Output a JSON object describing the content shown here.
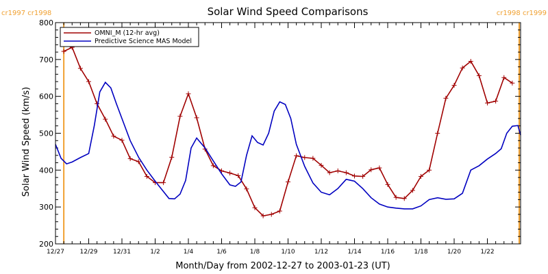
{
  "chart_data": {
    "type": "line",
    "title": "Solar Wind Speed Comparisons",
    "xlabel": "Month/Day from 2002-12-27 to 2003-01-23 (UT)",
    "ylabel": "Solar Wind Speed (km/s)",
    "ylim": [
      200,
      800
    ],
    "yticks": [
      200,
      300,
      400,
      500,
      600,
      700,
      800
    ],
    "xlim": [
      "2002-12-27",
      "2003-01-24"
    ],
    "xtick_labels": [
      "12/27",
      "12/29",
      "12/31",
      "1/2",
      "1/4",
      "1/6",
      "1/8",
      "1/10",
      "1/12",
      "1/14",
      "1/16",
      "1/18",
      "1/20",
      "1/22"
    ],
    "xtick_dates": [
      "2002-12-27",
      "2002-12-29",
      "2002-12-31",
      "2003-01-02",
      "2003-01-04",
      "2003-01-06",
      "2003-01-08",
      "2003-01-10",
      "2003-01-12",
      "2003-01-14",
      "2003-01-16",
      "2003-01-18",
      "2003-01-20",
      "2003-01-22"
    ],
    "grid": false,
    "legend_position": "top-left",
    "carrington_markers": [
      {
        "label": "cr1997 cr1998",
        "date": "2002-12-27T12:00",
        "color": "#f0a030"
      },
      {
        "label": "cr1998 cr1999",
        "date": "2003-01-23T22:00",
        "color": "#f0a030"
      }
    ],
    "series": [
      {
        "name": "OMNI_M (12-hr avg)",
        "color": "#a00000",
        "marker": "plus",
        "points": [
          [
            "2002-12-27T12:00",
            722
          ],
          [
            "2002-12-28T00:00",
            733
          ],
          [
            "2002-12-28T12:00",
            676
          ],
          [
            "2002-12-29T00:00",
            640
          ],
          [
            "2002-12-29T12:00",
            580
          ],
          [
            "2002-12-30T00:00",
            538
          ],
          [
            "2002-12-30T12:00",
            492
          ],
          [
            "2002-12-31T00:00",
            481
          ],
          [
            "2002-12-31T12:00",
            431
          ],
          [
            "2003-01-01T00:00",
            423
          ],
          [
            "2003-01-01T12:00",
            383
          ],
          [
            "2003-01-02T00:00",
            366
          ],
          [
            "2003-01-02T12:00",
            366
          ],
          [
            "2003-01-03T00:00",
            435
          ],
          [
            "2003-01-03T12:00",
            546
          ],
          [
            "2003-01-04T00:00",
            607
          ],
          [
            "2003-01-04T12:00",
            542
          ],
          [
            "2003-01-05T00:00",
            457
          ],
          [
            "2003-01-05T12:00",
            412
          ],
          [
            "2003-01-06T00:00",
            398
          ],
          [
            "2003-01-06T12:00",
            392
          ],
          [
            "2003-01-07T00:00",
            385
          ],
          [
            "2003-01-07T12:00",
            349
          ],
          [
            "2003-01-08T00:00",
            298
          ],
          [
            "2003-01-08T12:00",
            276
          ],
          [
            "2003-01-09T00:00",
            280
          ],
          [
            "2003-01-09T12:00",
            289
          ],
          [
            "2003-01-10T00:00",
            368
          ],
          [
            "2003-01-10T12:00",
            439
          ],
          [
            "2003-01-11T00:00",
            434
          ],
          [
            "2003-01-11T12:00",
            432
          ],
          [
            "2003-01-12T00:00",
            413
          ],
          [
            "2003-01-12T12:00",
            393
          ],
          [
            "2003-01-13T00:00",
            398
          ],
          [
            "2003-01-13T12:00",
            393
          ],
          [
            "2003-01-14T00:00",
            384
          ],
          [
            "2003-01-14T12:00",
            383
          ],
          [
            "2003-01-15T00:00",
            401
          ],
          [
            "2003-01-15T12:00",
            406
          ],
          [
            "2003-01-16T00:00",
            361
          ],
          [
            "2003-01-16T12:00",
            326
          ],
          [
            "2003-01-17T00:00",
            323
          ],
          [
            "2003-01-17T12:00",
            345
          ],
          [
            "2003-01-18T00:00",
            383
          ],
          [
            "2003-01-18T12:00",
            400
          ],
          [
            "2003-01-19T00:00",
            500
          ],
          [
            "2003-01-19T12:00",
            595
          ],
          [
            "2003-01-20T00:00",
            630
          ],
          [
            "2003-01-20T12:00",
            677
          ],
          [
            "2003-01-21T00:00",
            695
          ],
          [
            "2003-01-21T12:00",
            656
          ],
          [
            "2003-01-22T00:00",
            582
          ],
          [
            "2003-01-22T12:00",
            587
          ],
          [
            "2003-01-23T00:00",
            651
          ],
          [
            "2003-01-23T12:00",
            636
          ]
        ]
      },
      {
        "name": "Predictive Science MAS Model",
        "color": "#0000c0",
        "points": [
          [
            "2002-12-27T00:00",
            470
          ],
          [
            "2002-12-27T08:00",
            432
          ],
          [
            "2002-12-27T16:00",
            417
          ],
          [
            "2002-12-28T00:00",
            422
          ],
          [
            "2002-12-28T12:00",
            434
          ],
          [
            "2002-12-29T00:00",
            445
          ],
          [
            "2002-12-29T08:00",
            520
          ],
          [
            "2002-12-29T16:00",
            612
          ],
          [
            "2002-12-30T00:00",
            638
          ],
          [
            "2002-12-30T08:00",
            623
          ],
          [
            "2002-12-30T16:00",
            580
          ],
          [
            "2002-12-31T00:00",
            540
          ],
          [
            "2002-12-31T12:00",
            480
          ],
          [
            "2003-01-01T00:00",
            435
          ],
          [
            "2003-01-01T12:00",
            400
          ],
          [
            "2003-01-02T00:00",
            370
          ],
          [
            "2003-01-02T12:00",
            342
          ],
          [
            "2003-01-02T20:00",
            323
          ],
          [
            "2003-01-03T04:00",
            322
          ],
          [
            "2003-01-03T12:00",
            335
          ],
          [
            "2003-01-03T20:00",
            372
          ],
          [
            "2003-01-04T04:00",
            460
          ],
          [
            "2003-01-04T12:00",
            487
          ],
          [
            "2003-01-05T00:00",
            460
          ],
          [
            "2003-01-05T12:00",
            425
          ],
          [
            "2003-01-06T00:00",
            390
          ],
          [
            "2003-01-06T12:00",
            360
          ],
          [
            "2003-01-06T20:00",
            356
          ],
          [
            "2003-01-07T04:00",
            368
          ],
          [
            "2003-01-07T12:00",
            440
          ],
          [
            "2003-01-07T20:00",
            493
          ],
          [
            "2003-01-08T04:00",
            475
          ],
          [
            "2003-01-08T12:00",
            468
          ],
          [
            "2003-01-08T20:00",
            500
          ],
          [
            "2003-01-09T04:00",
            560
          ],
          [
            "2003-01-09T12:00",
            585
          ],
          [
            "2003-01-09T20:00",
            578
          ],
          [
            "2003-01-10T04:00",
            540
          ],
          [
            "2003-01-10T12:00",
            470
          ],
          [
            "2003-01-11T00:00",
            410
          ],
          [
            "2003-01-11T12:00",
            365
          ],
          [
            "2003-01-12T00:00",
            340
          ],
          [
            "2003-01-12T12:00",
            333
          ],
          [
            "2003-01-13T00:00",
            350
          ],
          [
            "2003-01-13T12:00",
            375
          ],
          [
            "2003-01-14T00:00",
            370
          ],
          [
            "2003-01-14T12:00",
            350
          ],
          [
            "2003-01-15T00:00",
            325
          ],
          [
            "2003-01-15T12:00",
            308
          ],
          [
            "2003-01-16T00:00",
            300
          ],
          [
            "2003-01-16T12:00",
            297
          ],
          [
            "2003-01-17T00:00",
            295
          ],
          [
            "2003-01-17T12:00",
            295
          ],
          [
            "2003-01-18T00:00",
            303
          ],
          [
            "2003-01-18T12:00",
            320
          ],
          [
            "2003-01-19T00:00",
            325
          ],
          [
            "2003-01-19T12:00",
            321
          ],
          [
            "2003-01-20T00:00",
            322
          ],
          [
            "2003-01-20T12:00",
            337
          ],
          [
            "2003-01-21T00:00",
            400
          ],
          [
            "2003-01-21T12:00",
            412
          ],
          [
            "2003-01-22T00:00",
            430
          ],
          [
            "2003-01-22T12:00",
            445
          ],
          [
            "2003-01-22T20:00",
            458
          ],
          [
            "2003-01-23T04:00",
            500
          ],
          [
            "2003-01-23T12:00",
            519
          ],
          [
            "2003-01-23T20:00",
            521
          ],
          [
            "2003-01-24T00:00",
            495
          ]
        ]
      }
    ]
  }
}
